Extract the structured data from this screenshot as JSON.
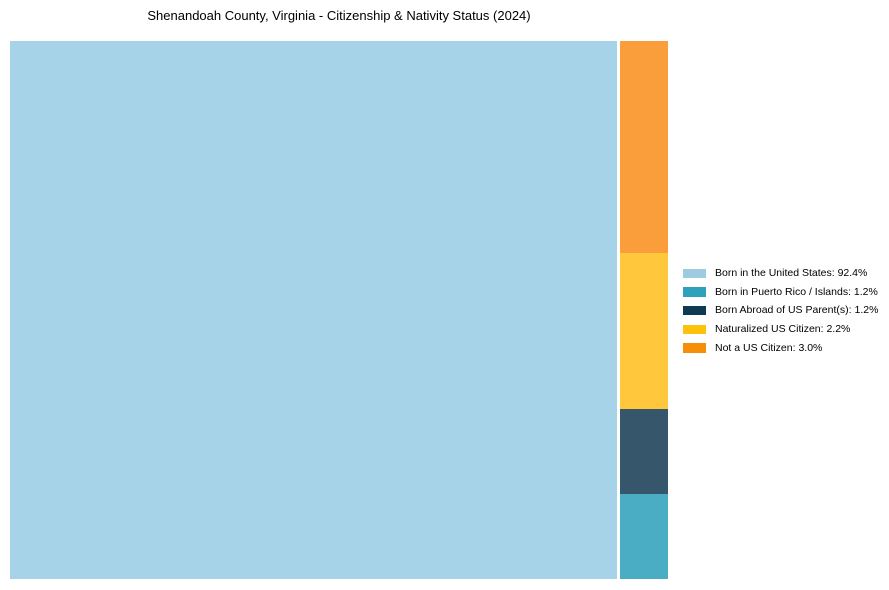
{
  "chart_data": {
    "type": "treemap",
    "title": "Shenandoah County, Virginia - Citizenship & Nativity Status (2024)",
    "unit": "%",
    "legend_position": "right",
    "background_color": "#ffffff",
    "categories": [
      {
        "label": "Born in the United States",
        "value": 92.4,
        "fill": "#A7D3E8",
        "legend_color": "#9FCBE1"
      },
      {
        "label": "Born in Puerto Rico / Islands",
        "value": 1.2,
        "fill": "#4BADC4",
        "legend_color": "#2EA2BD"
      },
      {
        "label": "Born Abroad of US Parent(s)",
        "value": 1.2,
        "fill": "#36566B",
        "legend_color": "#0F3A51"
      },
      {
        "label": "Naturalized US Citizen",
        "value": 2.2,
        "fill": "#FFC73B",
        "legend_color": "#FFC20A"
      },
      {
        "label": "Not a US Citizen",
        "value": 3.0,
        "fill": "#F99E3B",
        "legend_color": "#F78E0A"
      }
    ]
  }
}
